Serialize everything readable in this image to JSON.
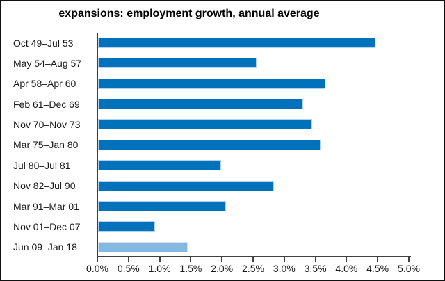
{
  "title": "expansions: employment growth, annual average",
  "colors": {
    "bar": "#0072BC",
    "bar_border": "#b3d3ec",
    "highlight_bar": "#85B8E1",
    "highlight_bar_border": "#cfe3f4",
    "axis": "#404040",
    "text": "#1a1a1a"
  },
  "chart_data": {
    "type": "bar",
    "orientation": "horizontal",
    "title": "expansions: employment growth, annual average",
    "categories": [
      "Oct 49–Jul 53",
      "May 54–Aug 57",
      "Apr 58–Apr 60",
      "Feb 61–Dec 69",
      "Nov 70–Nov 73",
      "Mar 75–Jan 80",
      "Jul 80–Jul 81",
      "Nov 82–Jul 90",
      "Mar 91–Mar 01",
      "Nov 01–Dec 07",
      "Jun 09–Jan 18"
    ],
    "values": [
      4.45,
      2.55,
      3.65,
      3.29,
      3.44,
      3.57,
      1.98,
      2.82,
      2.05,
      0.91,
      1.44
    ],
    "unit": "%",
    "highlight_index": 10,
    "xlabel": "",
    "ylabel": "",
    "xlim": [
      0,
      5
    ],
    "x_tick_step": 0.5,
    "x_tick_labels": [
      "0.0%",
      "0.5%",
      "1.0%",
      "1.5%",
      "2.0%",
      "2.5%",
      "3.0%",
      "3.5%",
      "4.0%",
      "4.5%",
      "5.0%"
    ],
    "grid": false,
    "legend": false
  }
}
